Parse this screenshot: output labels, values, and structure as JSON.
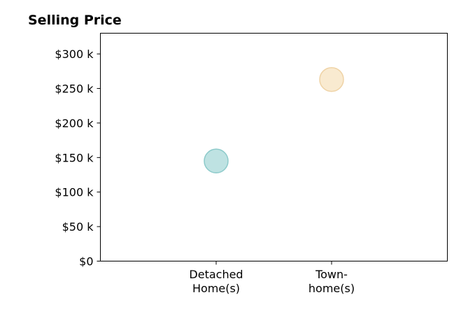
{
  "chart_data": {
    "type": "scatter",
    "title": "Selling Price",
    "xlabel": "",
    "ylabel": "",
    "categories": [
      [
        "Detached",
        "Home(s)"
      ],
      [
        "Town-",
        "home(s)"
      ]
    ],
    "values": [
      145000,
      263000
    ],
    "point_colors": [
      "#a8d8d8",
      "#f7e3c0"
    ],
    "point_edge_colors": [
      "#8ccaca",
      "#efd3a6"
    ],
    "ylim": [
      0,
      330000
    ],
    "y_ticks": [
      {
        "value": 0,
        "label": "$0"
      },
      {
        "value": 50000,
        "label": "$50 k"
      },
      {
        "value": 100000,
        "label": "$100 k"
      },
      {
        "value": 150000,
        "label": "$150 k"
      },
      {
        "value": 200000,
        "label": "$200 k"
      },
      {
        "value": 250000,
        "label": "$250 k"
      },
      {
        "value": 300000,
        "label": "$300 k"
      }
    ],
    "grid": false,
    "legend": "none"
  }
}
